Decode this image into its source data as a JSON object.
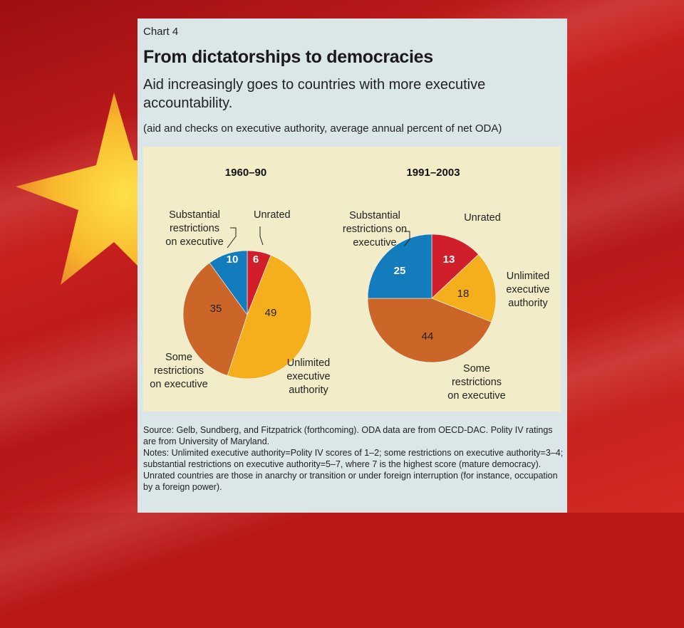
{
  "chart_data": {
    "type": "pie",
    "chart_label": "Chart 4",
    "title": "From dictatorships to democracies",
    "subtitle": "Aid increasingly goes to countries with more executive accountability.",
    "units": "(aid and checks on executive authority, average annual percent of net ODA)",
    "categories": [
      "Unrated",
      "Unlimited executive authority",
      "Some restrictions on executive",
      "Substantial restrictions on executive"
    ],
    "colors": [
      "#d01f2a",
      "#f5ae1c",
      "#cc6628",
      "#137cbd"
    ],
    "pies": [
      {
        "name": "1960–90",
        "values": [
          6,
          49,
          35,
          10
        ],
        "labels": [
          {
            "lines": [
              "Unrated"
            ]
          },
          {
            "lines": [
              "Unlimited",
              "executive",
              "authority"
            ]
          },
          {
            "lines": [
              "Some",
              "restrictions",
              "on executive"
            ]
          },
          {
            "lines": [
              "Substantial",
              "restrictions",
              "on executive"
            ]
          }
        ]
      },
      {
        "name": "1991–2003",
        "values": [
          13,
          18,
          44,
          25
        ],
        "labels": [
          {
            "lines": [
              "Unrated"
            ]
          },
          {
            "lines": [
              "Unlimited",
              "executive",
              "authority"
            ]
          },
          {
            "lines": [
              "Some",
              "restrictions",
              "on executive"
            ]
          },
          {
            "lines": [
              "Substantial",
              "restrictions on",
              "executive"
            ]
          }
        ]
      }
    ]
  },
  "notes": {
    "source": "Source: Gelb, Sundberg, and Fitzpatrick (forthcoming). ODA data are from OECD-DAC. Polity IV ratings are from University of Maryland.",
    "notes": "Notes: Unlimited executive authority=Polity IV scores of 1–2; some restrictions on executive authority=3–4; substantial restrictions on executive authority=5–7, where 7 is the highest score (mature democracy). Unrated countries are those in anarchy or transition or under foreign interruption (for instance, occupation by a foreign power)."
  }
}
